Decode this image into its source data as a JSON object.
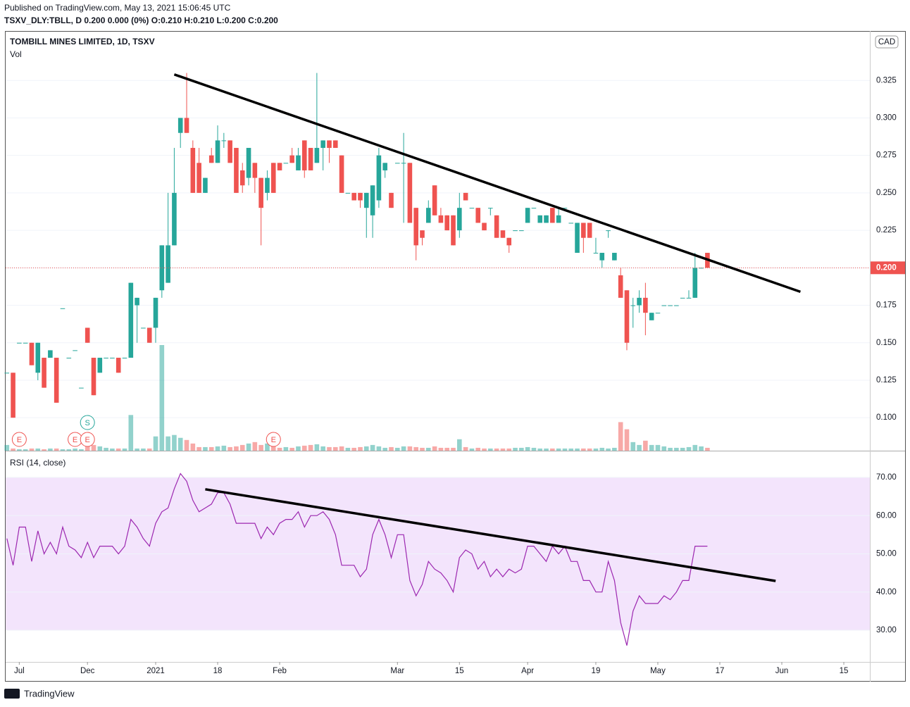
{
  "header": {
    "published": "Published on TradingView.com, May 13, 2021 15:06:45 UTC",
    "quote": "TSXV_DLY:TBLL, D  0.200  0.000 (0%)  O:0.210  H:0.210  L:0.200  C:0.200"
  },
  "footer": "TradingView",
  "chart_data": [
    {
      "type": "candlestick",
      "title": "TOMBILL MINES LIMITED, 1D, TSXV",
      "subtitle": "Vol",
      "currency": "CAD",
      "up_color": "#26a69a",
      "down_color": "#ef5350",
      "open": [
        0.13,
        0.13,
        0.15,
        0.15,
        0.15,
        0.13,
        0.14,
        0.14,
        0.14,
        0.173,
        0.14,
        0.145,
        0.12,
        0.16,
        0.14,
        0.13,
        0.14,
        0.14,
        0.14,
        0.14,
        0.14,
        0.175,
        0.16,
        0.16,
        0.16,
        0.185,
        0.19,
        0.215,
        0.29,
        0.3,
        0.28,
        0.27,
        0.25,
        0.275,
        0.27,
        0.285,
        0.285,
        0.28,
        0.265,
        0.26,
        0.27,
        0.26,
        0.25,
        0.27,
        0.27,
        0.27,
        0.275,
        0.265,
        0.285,
        0.28,
        0.27,
        0.28,
        0.285,
        0.285,
        0.275,
        0.25,
        0.25,
        0.25,
        0.24,
        0.235,
        0.245,
        0.265,
        0.25,
        0.27,
        0.27,
        0.27,
        0.24,
        0.225,
        0.23,
        0.255,
        0.235,
        0.235,
        0.235,
        0.225,
        0.25,
        0.24,
        0.24,
        0.23,
        0.24,
        0.235,
        0.225,
        0.22,
        0.225,
        0.225,
        0.23,
        0.24,
        0.23,
        0.23,
        0.24,
        0.23,
        0.24,
        0.23,
        0.21,
        0.23,
        0.23,
        0.21,
        0.205,
        0.225,
        0.205,
        0.195,
        0.185,
        0.175,
        0.175,
        0.18,
        0.165,
        0.17,
        0.175,
        0.175,
        0.175,
        0.18,
        0.18,
        0.18,
        0.2,
        0.21
      ],
      "high": [
        0.13,
        0.13,
        0.15,
        0.15,
        0.15,
        0.15,
        0.14,
        0.145,
        0.14,
        0.173,
        0.14,
        0.145,
        0.12,
        0.16,
        0.14,
        0.14,
        0.14,
        0.14,
        0.14,
        0.14,
        0.19,
        0.18,
        0.16,
        0.16,
        0.18,
        0.215,
        0.25,
        0.28,
        0.3,
        0.33,
        0.285,
        0.28,
        0.26,
        0.28,
        0.295,
        0.29,
        0.285,
        0.28,
        0.27,
        0.28,
        0.27,
        0.26,
        0.265,
        0.27,
        0.27,
        0.27,
        0.28,
        0.28,
        0.285,
        0.28,
        0.33,
        0.285,
        0.285,
        0.285,
        0.275,
        0.25,
        0.25,
        0.25,
        0.25,
        0.255,
        0.28,
        0.27,
        0.25,
        0.27,
        0.29,
        0.27,
        0.24,
        0.225,
        0.245,
        0.255,
        0.24,
        0.235,
        0.235,
        0.25,
        0.25,
        0.24,
        0.24,
        0.23,
        0.24,
        0.235,
        0.225,
        0.22,
        0.225,
        0.225,
        0.24,
        0.24,
        0.235,
        0.235,
        0.24,
        0.24,
        0.24,
        0.23,
        0.23,
        0.23,
        0.23,
        0.22,
        0.21,
        0.225,
        0.21,
        0.2,
        0.185,
        0.18,
        0.185,
        0.19,
        0.17,
        0.17,
        0.175,
        0.175,
        0.175,
        0.18,
        0.185,
        0.21,
        0.2,
        0.21
      ],
      "low": [
        0.13,
        0.1,
        0.15,
        0.15,
        0.135,
        0.125,
        0.12,
        0.14,
        0.11,
        0.173,
        0.14,
        0.145,
        0.12,
        0.15,
        0.115,
        0.13,
        0.14,
        0.14,
        0.13,
        0.14,
        0.14,
        0.15,
        0.16,
        0.15,
        0.15,
        0.18,
        0.19,
        0.215,
        0.28,
        0.29,
        0.25,
        0.25,
        0.25,
        0.27,
        0.27,
        0.28,
        0.27,
        0.25,
        0.25,
        0.255,
        0.25,
        0.215,
        0.245,
        0.25,
        0.265,
        0.27,
        0.27,
        0.265,
        0.26,
        0.265,
        0.27,
        0.265,
        0.27,
        0.28,
        0.25,
        0.25,
        0.245,
        0.24,
        0.22,
        0.22,
        0.24,
        0.26,
        0.24,
        0.27,
        0.23,
        0.23,
        0.205,
        0.215,
        0.23,
        0.235,
        0.23,
        0.225,
        0.215,
        0.22,
        0.245,
        0.24,
        0.23,
        0.225,
        0.235,
        0.22,
        0.22,
        0.21,
        0.225,
        0.225,
        0.23,
        0.24,
        0.23,
        0.23,
        0.23,
        0.23,
        0.24,
        0.23,
        0.21,
        0.21,
        0.22,
        0.21,
        0.2,
        0.22,
        0.205,
        0.18,
        0.145,
        0.16,
        0.17,
        0.155,
        0.165,
        0.17,
        0.175,
        0.175,
        0.175,
        0.18,
        0.18,
        0.18,
        0.2,
        0.2
      ],
      "close": [
        0.13,
        0.1,
        0.15,
        0.15,
        0.135,
        0.15,
        0.12,
        0.145,
        0.11,
        0.173,
        0.14,
        0.145,
        0.12,
        0.15,
        0.115,
        0.14,
        0.14,
        0.14,
        0.13,
        0.14,
        0.19,
        0.18,
        0.16,
        0.15,
        0.18,
        0.215,
        0.215,
        0.25,
        0.3,
        0.29,
        0.25,
        0.25,
        0.26,
        0.27,
        0.285,
        0.285,
        0.27,
        0.25,
        0.255,
        0.28,
        0.26,
        0.24,
        0.26,
        0.25,
        0.265,
        0.27,
        0.27,
        0.275,
        0.265,
        0.265,
        0.28,
        0.285,
        0.28,
        0.28,
        0.25,
        0.25,
        0.245,
        0.245,
        0.25,
        0.255,
        0.275,
        0.27,
        0.24,
        0.27,
        0.27,
        0.23,
        0.215,
        0.22,
        0.24,
        0.235,
        0.23,
        0.225,
        0.215,
        0.24,
        0.245,
        0.24,
        0.23,
        0.225,
        0.24,
        0.22,
        0.22,
        0.215,
        0.225,
        0.225,
        0.24,
        0.24,
        0.235,
        0.235,
        0.23,
        0.235,
        0.24,
        0.23,
        0.23,
        0.22,
        0.22,
        0.21,
        0.21,
        0.225,
        0.21,
        0.18,
        0.15,
        0.175,
        0.18,
        0.17,
        0.17,
        0.17,
        0.175,
        0.175,
        0.175,
        0.18,
        0.18,
        0.2,
        0.2,
        0.2
      ],
      "volume": [
        8,
        3,
        2,
        2,
        3,
        3,
        2,
        3,
        3,
        2,
        2,
        3,
        2,
        10,
        8,
        6,
        4,
        3,
        3,
        3,
        50,
        3,
        3,
        3,
        20,
        148,
        20,
        22,
        18,
        15,
        10,
        5,
        5,
        5,
        6,
        7,
        5,
        6,
        8,
        10,
        12,
        8,
        10,
        6,
        4,
        5,
        4,
        6,
        7,
        8,
        9,
        6,
        5,
        5,
        6,
        4,
        4,
        5,
        6,
        8,
        6,
        4,
        5,
        4,
        6,
        6,
        5,
        4,
        4,
        6,
        4,
        4,
        4,
        16,
        5,
        3,
        4,
        3,
        3,
        3,
        3,
        3,
        4,
        4,
        5,
        4,
        3,
        3,
        3,
        3,
        3,
        3,
        3,
        3,
        3,
        3,
        4,
        3,
        4,
        40,
        30,
        12,
        8,
        14,
        8,
        8,
        6,
        4,
        4,
        4,
        5,
        8,
        6,
        4
      ],
      "events": [
        {
          "x": 2,
          "label": "E",
          "color": "#ef5350"
        },
        {
          "x": 11,
          "label": "E",
          "color": "#ef5350"
        },
        {
          "x": 13,
          "label": "E",
          "color": "#ef5350"
        },
        {
          "x": 13,
          "label": "S",
          "color": "#26a69a"
        },
        {
          "x": 43,
          "label": "E",
          "color": "#ef5350"
        }
      ],
      "trendlines": [
        {
          "x": [
            27,
            128
          ],
          "y": [
            0.329,
            0.184
          ],
          "color": "#000000"
        }
      ],
      "last_price": {
        "value": 0.2,
        "label": "0.200"
      },
      "xlim": [
        -0.2,
        139.2
      ],
      "ylim": [
        0.078,
        0.358
      ],
      "yticks": [
        {
          "value": 0.1,
          "label": "0.100"
        },
        {
          "value": 0.125,
          "label": "0.125"
        },
        {
          "value": 0.15,
          "label": "0.150"
        },
        {
          "value": 0.175,
          "label": "0.175"
        },
        {
          "value": 0.2,
          "label": "0.200"
        },
        {
          "value": 0.225,
          "label": "0.225"
        },
        {
          "value": 0.25,
          "label": "0.250"
        },
        {
          "value": 0.275,
          "label": "0.275"
        },
        {
          "value": 0.3,
          "label": "0.300"
        },
        {
          "value": 0.325,
          "label": "0.325"
        }
      ],
      "grid": true
    },
    {
      "type": "line",
      "title": "RSI (14, close)",
      "color": "#9c27b0",
      "band": [
        30,
        70
      ],
      "band_color": "#f3e4fc",
      "values": [
        54,
        47,
        57,
        57,
        48,
        56,
        50,
        53,
        50,
        57,
        52,
        51,
        49,
        53,
        49,
        52,
        52,
        52,
        50,
        52,
        59,
        57,
        54,
        52,
        58,
        61,
        62,
        67,
        71,
        69,
        64,
        61,
        62,
        63,
        66,
        66,
        63,
        58,
        58,
        58,
        58,
        54,
        57,
        55,
        58,
        59,
        59,
        61,
        57,
        60,
        60,
        61,
        59,
        55,
        47,
        47,
        47,
        44,
        46,
        55,
        59,
        55,
        49,
        55,
        55,
        43,
        39,
        42,
        48,
        46,
        45,
        43,
        40,
        49,
        51,
        50,
        46,
        48,
        44,
        46,
        44,
        46,
        45,
        46,
        52,
        52,
        50,
        48,
        52,
        50,
        52,
        48,
        48,
        43,
        43,
        40,
        40,
        48,
        43,
        32,
        26,
        35,
        39,
        37,
        37,
        37,
        39,
        38,
        40,
        43,
        43,
        52,
        52,
        52
      ],
      "trendlines": [
        {
          "x": [
            32,
            124
          ],
          "y": [
            66.9,
            42.9
          ],
          "color": "#000000"
        }
      ],
      "xlim": [
        -0.2,
        139.2
      ],
      "ylim": [
        21.7,
        77
      ],
      "yticks": [
        {
          "value": 30,
          "label": "30.00"
        },
        {
          "value": 40,
          "label": "40.00"
        },
        {
          "value": 50,
          "label": "50.00"
        },
        {
          "value": 60,
          "label": "60.00"
        },
        {
          "value": 70,
          "label": "70.00"
        }
      ],
      "xticks": [
        {
          "value": 2,
          "label": "Jul"
        },
        {
          "value": 13,
          "label": "Dec"
        },
        {
          "value": 24,
          "label": "2021"
        },
        {
          "value": 34,
          "label": "18"
        },
        {
          "value": 44,
          "label": "Feb"
        },
        {
          "value": 63,
          "label": "Mar"
        },
        {
          "value": 73,
          "label": "15"
        },
        {
          "value": 84,
          "label": "Apr"
        },
        {
          "value": 95,
          "label": "19"
        },
        {
          "value": 105,
          "label": "May"
        },
        {
          "value": 115,
          "label": "17"
        },
        {
          "value": 125,
          "label": "Jun"
        },
        {
          "value": 135,
          "label": "15"
        }
      ],
      "grid": true
    }
  ]
}
